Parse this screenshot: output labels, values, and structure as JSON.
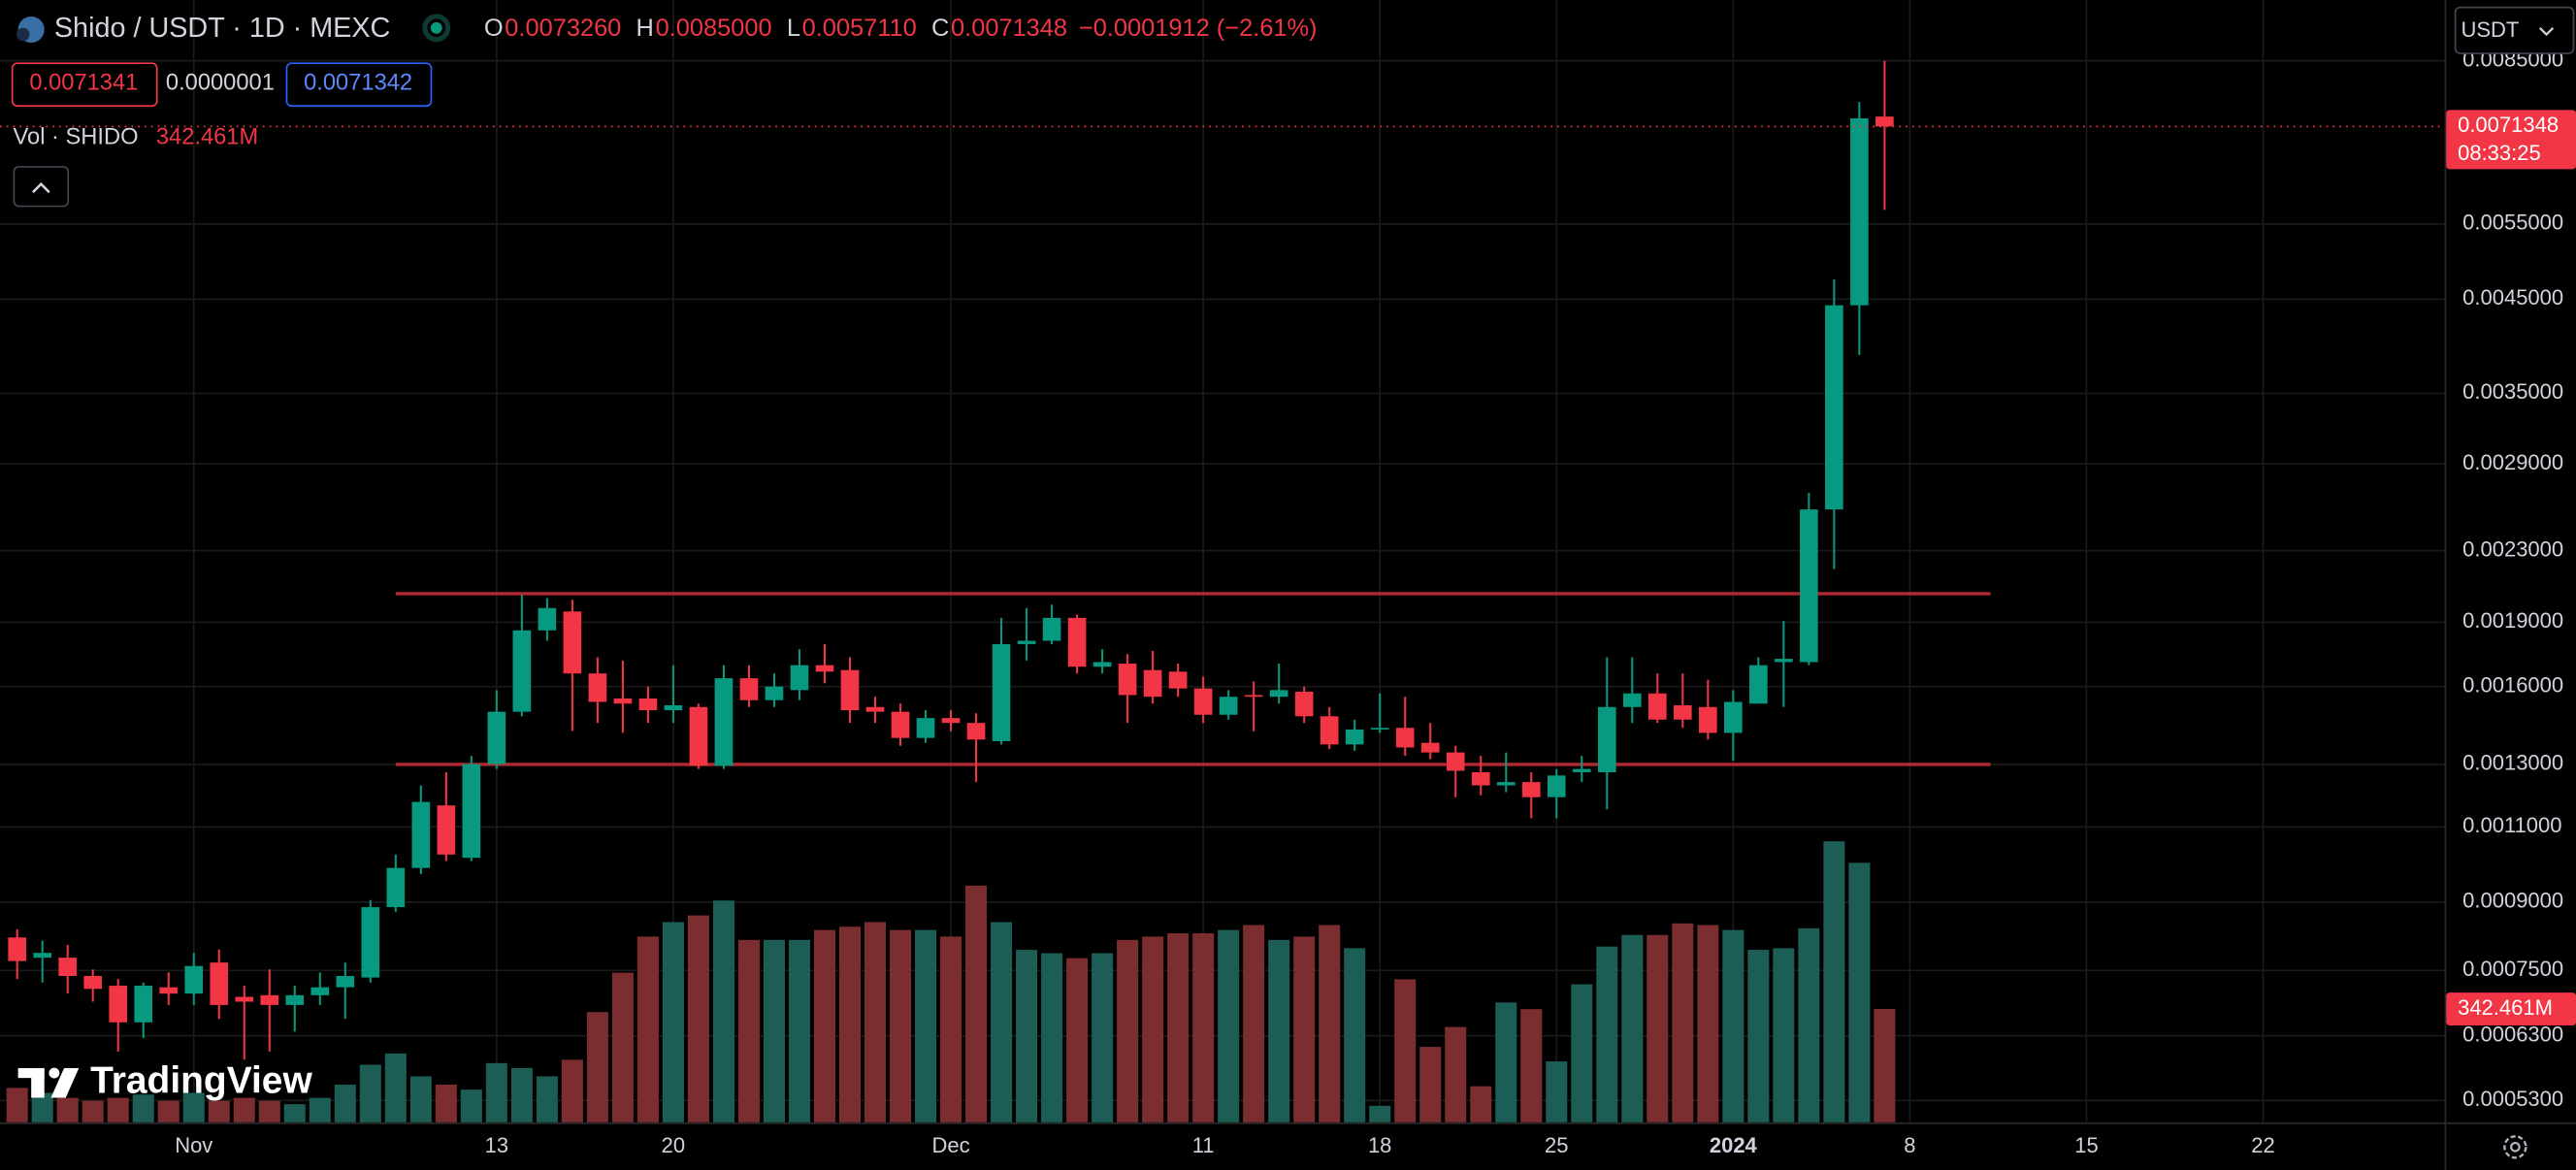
{
  "header": {
    "symbol": "Shido / USDT · 1D · MEXC",
    "ohlc": [
      {
        "key": "O",
        "value": "0.0073260"
      },
      {
        "key": "H",
        "value": "0.0085000"
      },
      {
        "key": "L",
        "value": "0.0057110"
      },
      {
        "key": "C",
        "value": "0.0071348"
      }
    ],
    "change": "−0.0001912 (−2.61%)",
    "sell": "0.0071341",
    "spread": "0.0000001",
    "buy": "0.0071342",
    "volume_title": "Vol · SHIDO",
    "currency": "USDT",
    "countdown": "08:33:25",
    "logo": "TradingView"
  },
  "chart_data": {
    "type": "candlestick",
    "log_scale": true,
    "grid": true,
    "up_color": "#089981",
    "down_color": "#f23645",
    "volume_up_color": "#1c5d55",
    "volume_down_color": "#7c2d30",
    "x": [
      -7,
      -6,
      -5,
      -4,
      -3,
      -2,
      -1,
      0,
      1,
      2,
      3,
      4,
      5,
      6,
      7,
      8,
      9,
      10,
      11,
      12,
      13,
      14,
      15,
      16,
      17,
      18,
      19,
      20,
      21,
      22,
      23,
      24,
      25,
      26,
      27,
      28,
      29,
      30,
      31,
      32,
      33,
      34,
      35,
      36,
      37,
      38,
      39,
      40,
      41,
      42,
      43,
      44,
      45,
      46,
      47,
      48,
      49,
      50,
      51,
      52,
      53,
      54,
      55,
      56,
      57,
      58,
      59,
      60,
      61,
      62,
      63,
      64,
      65,
      66,
      67
    ],
    "open": [
      0.000819,
      0.000776,
      0.000776,
      0.000739,
      0.00072,
      0.000653,
      0.000717,
      0.000705,
      0.000766,
      0.000699,
      0.000702,
      0.000684,
      0.000702,
      0.000717,
      0.000736,
      0.000888,
      0.000986,
      0.001165,
      0.001013,
      0.001301,
      0.001496,
      0.001859,
      0.001955,
      0.001657,
      0.00155,
      0.00155,
      0.001502,
      0.001515,
      0.001295,
      0.001636,
      0.001543,
      0.001585,
      0.001694,
      0.001672,
      0.001515,
      0.001496,
      0.001395,
      0.001471,
      0.001452,
      0.001383,
      0.001792,
      0.001808,
      0.001922,
      0.001687,
      0.001701,
      0.001672,
      0.001665,
      0.001592,
      0.001484,
      0.001564,
      0.001557,
      0.001578,
      0.001478,
      0.001371,
      0.001427,
      0.001433,
      0.001377,
      0.001342,
      0.001273,
      0.001229,
      0.00124,
      0.001191,
      0.001273,
      0.001273,
      0.001515,
      0.001571,
      0.001522,
      0.001515,
      0.001414,
      0.001529,
      0.001708,
      0.001708,
      0.002567,
      0.004427,
      0.007326
    ],
    "high": [
      0.000837,
      0.000812,
      0.000803,
      0.000752,
      0.000733,
      0.000726,
      0.000746,
      0.000786,
      0.000793,
      0.00072,
      0.000752,
      0.00072,
      0.000746,
      0.000766,
      0.000905,
      0.001022,
      0.001229,
      0.001273,
      0.00133,
      0.001585,
      0.002044,
      0.002026,
      0.002017,
      0.00173,
      0.001715,
      0.0016,
      0.001694,
      0.001529,
      0.001694,
      0.001694,
      0.001657,
      0.001768,
      0.001792,
      0.00173,
      0.001557,
      0.001529,
      0.001502,
      0.001502,
      0.00149,
      0.001922,
      0.001973,
      0.001991,
      0.001939,
      0.001768,
      0.001745,
      0.00176,
      0.001701,
      0.001643,
      0.001585,
      0.001622,
      0.001701,
      0.0016,
      0.001515,
      0.001465,
      0.001571,
      0.001557,
      0.001452,
      0.001366,
      0.00133,
      0.001342,
      0.001273,
      0.001284,
      0.00133,
      0.00173,
      0.00173,
      0.001657,
      0.001657,
      0.001629,
      0.001585,
      0.00173,
      0.001906,
      0.002683,
      0.004745,
      0.007618,
      0.0085
    ],
    "low": [
      0.000733,
      0.000726,
      0.000705,
      0.00069,
      0.000604,
      0.000626,
      0.000684,
      0.000684,
      0.000659,
      0.000591,
      0.000604,
      0.000637,
      0.000684,
      0.000659,
      0.000726,
      0.000877,
      0.00097,
      0.001004,
      0.001004,
      0.001284,
      0.001478,
      0.001808,
      0.001421,
      0.001452,
      0.001414,
      0.001452,
      0.001452,
      0.001284,
      0.001284,
      0.001515,
      0.001515,
      0.001543,
      0.001614,
      0.001452,
      0.001452,
      0.001366,
      0.001377,
      0.00142,
      0.00124,
      0.001371,
      0.001715,
      0.001792,
      0.001657,
      0.001657,
      0.001452,
      0.001529,
      0.001557,
      0.001452,
      0.001465,
      0.00142,
      0.001529,
      0.001452,
      0.001354,
      0.001348,
      0.001414,
      0.00133,
      0.001318,
      0.001191,
      0.001197,
      0.001207,
      0.001126,
      0.001126,
      0.00124,
      0.001153,
      0.001452,
      0.001452,
      0.001433,
      0.001389,
      0.001312,
      0.001529,
      0.001515,
      0.001694,
      0.00219,
      0.003877,
      0.005711
    ],
    "close": [
      0.000769,
      0.000786,
      0.000739,
      0.000714,
      0.000653,
      0.00072,
      0.000705,
      0.000759,
      0.000684,
      0.00069,
      0.000684,
      0.000702,
      0.000717,
      0.000739,
      0.000888,
      0.000986,
      0.001176,
      0.001022,
      0.001301,
      0.001496,
      0.001859,
      0.001973,
      0.001657,
      0.001536,
      0.001529,
      0.001502,
      0.001522,
      0.001295,
      0.001636,
      0.001543,
      0.0016,
      0.001694,
      0.001665,
      0.001502,
      0.001496,
      0.001395,
      0.001471,
      0.001452,
      0.001389,
      0.001792,
      0.001808,
      0.001922,
      0.001687,
      0.001708,
      0.001564,
      0.001557,
      0.001592,
      0.001484,
      0.001557,
      0.001557,
      0.001585,
      0.001478,
      0.001371,
      0.001427,
      0.001433,
      0.00136,
      0.001342,
      0.001278,
      0.001229,
      0.00124,
      0.001191,
      0.001262,
      0.001284,
      0.001515,
      0.001571,
      0.001465,
      0.001465,
      0.001414,
      0.001536,
      0.001694,
      0.001723,
      0.002567,
      0.004427,
      0.007292,
      0.0071348
    ],
    "volume": [
      104,
      89,
      74,
      65,
      74,
      84,
      65,
      89,
      65,
      74,
      65,
      55,
      74,
      114,
      174,
      208,
      139,
      114,
      99,
      179,
      164,
      139,
      189,
      333,
      452,
      561,
      605,
      625,
      670,
      551,
      551,
      551,
      581,
      591,
      605,
      581,
      581,
      561,
      715,
      605,
      521,
      511,
      496,
      511,
      551,
      561,
      571,
      571,
      581,
      596,
      551,
      561,
      596,
      526,
      50,
      432,
      228,
      288,
      109,
      362,
      342,
      184,
      417,
      531,
      566,
      566,
      601,
      596,
      581,
      521,
      526,
      586,
      849,
      784,
      342.461
    ],
    "volume_value_label": "342.461M",
    "xlim": [
      -7.68,
      89.19
    ],
    "xticks": [
      {
        "value": 0,
        "label": "Nov"
      },
      {
        "value": 12,
        "label": "13"
      },
      {
        "value": 19,
        "label": "20"
      },
      {
        "value": 30,
        "label": "Dec"
      },
      {
        "value": 40,
        "label": "11"
      },
      {
        "value": 47,
        "label": "18"
      },
      {
        "value": 54,
        "label": "25"
      },
      {
        "value": 61,
        "label": "2024"
      },
      {
        "value": 68,
        "label": "8"
      },
      {
        "value": 75,
        "label": "15"
      },
      {
        "value": 82,
        "label": "22"
      }
    ],
    "ylim": [
      0.0005,
      0.01
    ],
    "yticks": [
      {
        "value": 0.0085,
        "label": "0.0085000"
      },
      {
        "value": 0.0055,
        "label": "0.0055000"
      },
      {
        "value": 0.0045,
        "label": "0.0045000"
      },
      {
        "value": 0.0035,
        "label": "0.0035000"
      },
      {
        "value": 0.0029,
        "label": "0.0029000"
      },
      {
        "value": 0.0023,
        "label": "0.0023000"
      },
      {
        "value": 0.0019,
        "label": "0.0019000"
      },
      {
        "value": 0.0016,
        "label": "0.0016000"
      },
      {
        "value": 0.0013,
        "label": "0.0013000"
      },
      {
        "value": 0.0011,
        "label": "0.0011000"
      },
      {
        "value": 0.0009,
        "label": "0.0009000"
      },
      {
        "value": 0.00075,
        "label": "0.0007500"
      },
      {
        "value": 0.00063,
        "label": "0.0006300"
      },
      {
        "value": 0.00053,
        "label": "0.0005300"
      }
    ],
    "y2lim": [
      0,
      3390
    ],
    "hlines": [
      {
        "value": 0.00205,
        "x": [
          8,
          71.2
        ],
        "color": "#b22833"
      },
      {
        "value": 0.0013,
        "x": [
          8,
          71.2
        ],
        "color": "#b22833"
      }
    ]
  }
}
